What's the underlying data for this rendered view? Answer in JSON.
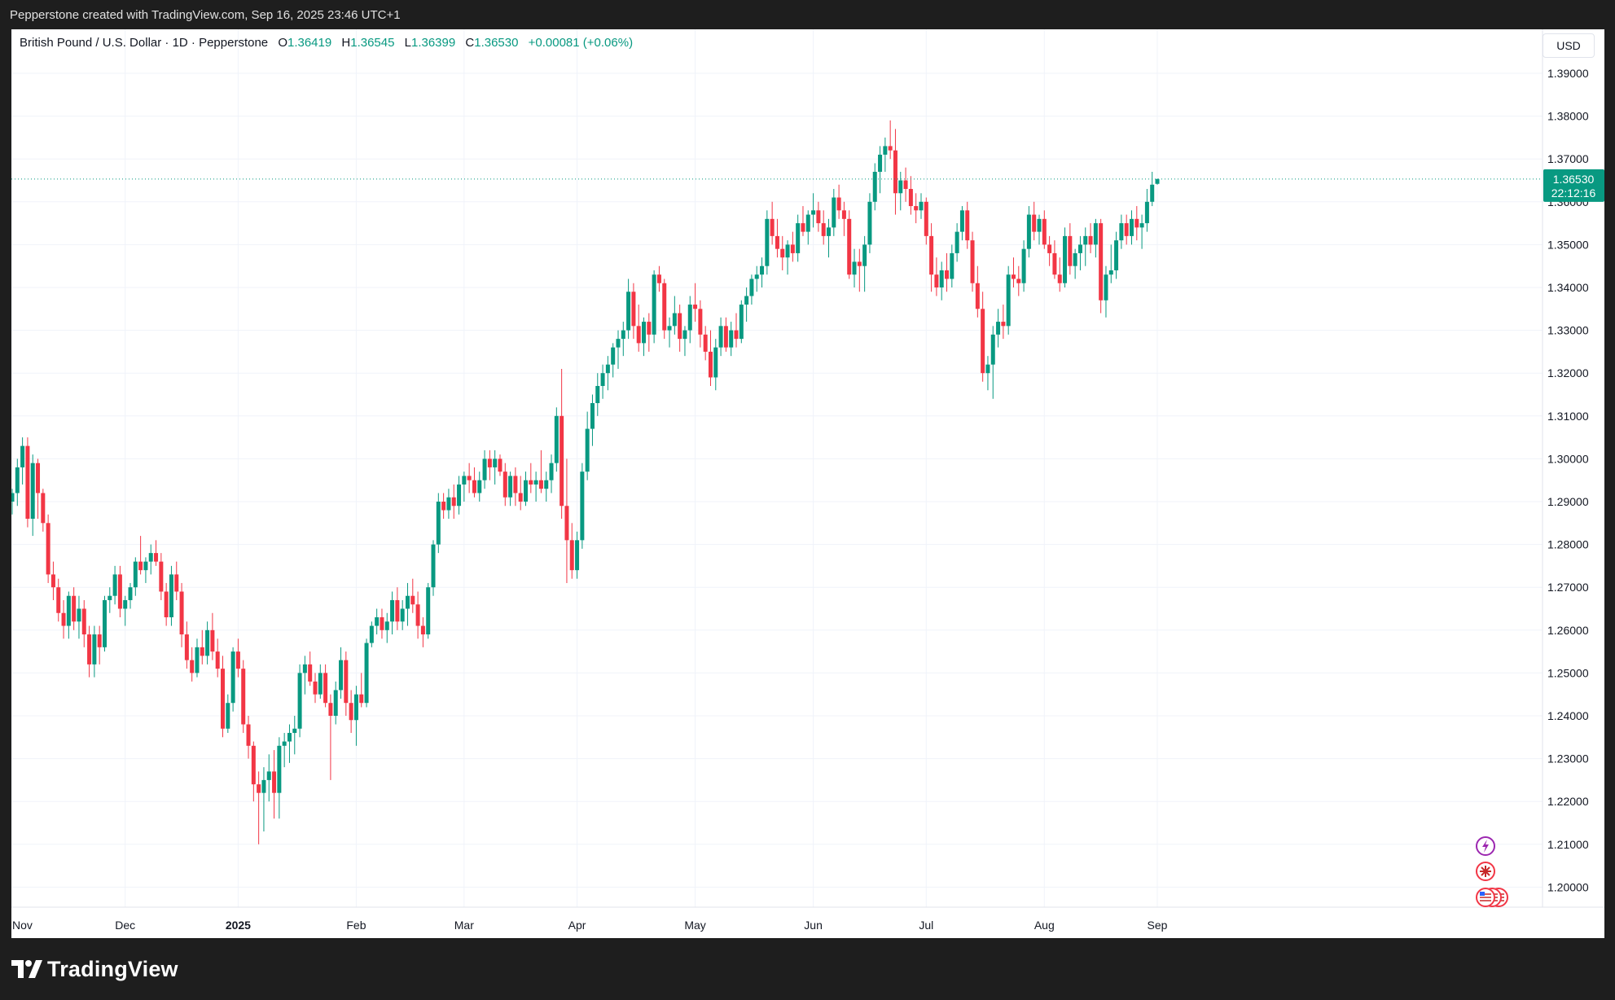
{
  "header": {
    "attribution": "Pepperstone created with TradingView.com, Sep 16, 2025 23:46 UTC+1"
  },
  "legend": {
    "symbol": "British Pound / U.S. Dollar · 1D · Pepperstone",
    "open_label": "O",
    "open": "1.36419",
    "high_label": "H",
    "high": "1.36545",
    "low_label": "L",
    "low": "1.36399",
    "close_label": "C",
    "close": "1.36530",
    "change": "+0.00081 (+0.06%)"
  },
  "currency_button": "USD",
  "price_tag": {
    "price": "1.36530",
    "countdown": "22:12:16",
    "color": "#089981"
  },
  "footer": {
    "brand": "TradingView"
  },
  "colors": {
    "up": "#089981",
    "down": "#f23645",
    "grid": "#f0f3fa"
  },
  "chart_data": {
    "type": "candlestick",
    "y_axis_ticks": [
      "1.20000",
      "1.21000",
      "1.22000",
      "1.23000",
      "1.24000",
      "1.25000",
      "1.26000",
      "1.27000",
      "1.28000",
      "1.29000",
      "1.30000",
      "1.31000",
      "1.32000",
      "1.33000",
      "1.34000",
      "1.35000",
      "1.36000",
      "1.37000",
      "1.38000",
      "1.39000"
    ],
    "ylim": [
      1.1895,
      1.3935
    ],
    "x_axis_labels": [
      {
        "label": "Nov",
        "bar": 0
      },
      {
        "label": "Dec",
        "bar": 22
      },
      {
        "label": "2025",
        "bar": 44,
        "bold": true
      },
      {
        "label": "Feb",
        "bar": 67
      },
      {
        "label": "Mar",
        "bar": 88
      },
      {
        "label": "Apr",
        "bar": 110
      },
      {
        "label": "May",
        "bar": 133
      },
      {
        "label": "Jun",
        "bar": 156
      },
      {
        "label": "Jul",
        "bar": 178
      },
      {
        "label": "Aug",
        "bar": 201
      },
      {
        "label": "Sep",
        "bar": 223
      }
    ],
    "candles_ohlc": [
      [
        1.29,
        1.293,
        1.287,
        1.292
      ],
      [
        1.292,
        1.3,
        1.289,
        1.298
      ],
      [
        1.298,
        1.305,
        1.294,
        1.303
      ],
      [
        1.303,
        1.305,
        1.284,
        1.286
      ],
      [
        1.286,
        1.301,
        1.282,
        1.299
      ],
      [
        1.299,
        1.3,
        1.286,
        1.292
      ],
      [
        1.292,
        1.293,
        1.283,
        1.285
      ],
      [
        1.285,
        1.287,
        1.271,
        1.273
      ],
      [
        1.273,
        1.276,
        1.267,
        1.27
      ],
      [
        1.27,
        1.272,
        1.262,
        1.264
      ],
      [
        1.264,
        1.267,
        1.258,
        1.261
      ],
      [
        1.261,
        1.269,
        1.258,
        1.268
      ],
      [
        1.268,
        1.27,
        1.26,
        1.262
      ],
      [
        1.262,
        1.268,
        1.258,
        1.265
      ],
      [
        1.265,
        1.267,
        1.256,
        1.259
      ],
      [
        1.259,
        1.261,
        1.249,
        1.252
      ],
      [
        1.252,
        1.261,
        1.249,
        1.259
      ],
      [
        1.259,
        1.261,
        1.252,
        1.256
      ],
      [
        1.256,
        1.268,
        1.255,
        1.267
      ],
      [
        1.267,
        1.27,
        1.264,
        1.268
      ],
      [
        1.268,
        1.275,
        1.266,
        1.273
      ],
      [
        1.273,
        1.275,
        1.263,
        1.265
      ],
      [
        1.265,
        1.268,
        1.261,
        1.267
      ],
      [
        1.267,
        1.271,
        1.265,
        1.27
      ],
      [
        1.27,
        1.277,
        1.268,
        1.276
      ],
      [
        1.276,
        1.282,
        1.273,
        1.274
      ],
      [
        1.274,
        1.277,
        1.271,
        1.276
      ],
      [
        1.276,
        1.28,
        1.273,
        1.278
      ],
      [
        1.278,
        1.281,
        1.275,
        1.276
      ],
      [
        1.276,
        1.278,
        1.267,
        1.269
      ],
      [
        1.269,
        1.271,
        1.261,
        1.263
      ],
      [
        1.263,
        1.275,
        1.261,
        1.273
      ],
      [
        1.273,
        1.276,
        1.267,
        1.269
      ],
      [
        1.269,
        1.271,
        1.256,
        1.259
      ],
      [
        1.259,
        1.262,
        1.251,
        1.253
      ],
      [
        1.253,
        1.256,
        1.248,
        1.25
      ],
      [
        1.25,
        1.258,
        1.249,
        1.256
      ],
      [
        1.256,
        1.26,
        1.252,
        1.254
      ],
      [
        1.254,
        1.262,
        1.252,
        1.26
      ],
      [
        1.26,
        1.264,
        1.253,
        1.255
      ],
      [
        1.255,
        1.258,
        1.249,
        1.251
      ],
      [
        1.251,
        1.254,
        1.235,
        1.237
      ],
      [
        1.237,
        1.245,
        1.236,
        1.243
      ],
      [
        1.243,
        1.256,
        1.241,
        1.255
      ],
      [
        1.255,
        1.258,
        1.249,
        1.251
      ],
      [
        1.251,
        1.253,
        1.236,
        1.238
      ],
      [
        1.238,
        1.24,
        1.23,
        1.233
      ],
      [
        1.233,
        1.234,
        1.22,
        1.224
      ],
      [
        1.224,
        1.227,
        1.21,
        1.222
      ],
      [
        1.222,
        1.228,
        1.213,
        1.225
      ],
      [
        1.225,
        1.231,
        1.22,
        1.227
      ],
      [
        1.227,
        1.232,
        1.216,
        1.222
      ],
      [
        1.222,
        1.235,
        1.216,
        1.233
      ],
      [
        1.233,
        1.236,
        1.228,
        1.234
      ],
      [
        1.234,
        1.238,
        1.229,
        1.236
      ],
      [
        1.236,
        1.24,
        1.231,
        1.237
      ],
      [
        1.237,
        1.252,
        1.235,
        1.25
      ],
      [
        1.25,
        1.254,
        1.245,
        1.252
      ],
      [
        1.252,
        1.255,
        1.247,
        1.248
      ],
      [
        1.248,
        1.25,
        1.243,
        1.245
      ],
      [
        1.245,
        1.252,
        1.244,
        1.25
      ],
      [
        1.25,
        1.252,
        1.242,
        1.243
      ],
      [
        1.243,
        1.245,
        1.225,
        1.24
      ],
      [
        1.24,
        1.248,
        1.238,
        1.246
      ],
      [
        1.246,
        1.256,
        1.244,
        1.253
      ],
      [
        1.253,
        1.255,
        1.24,
        1.243
      ],
      [
        1.243,
        1.246,
        1.236,
        1.239
      ],
      [
        1.239,
        1.247,
        1.233,
        1.245
      ],
      [
        1.245,
        1.25,
        1.242,
        1.243
      ],
      [
        1.243,
        1.258,
        1.242,
        1.257
      ],
      [
        1.257,
        1.262,
        1.256,
        1.261
      ],
      [
        1.261,
        1.265,
        1.259,
        1.263
      ],
      [
        1.263,
        1.265,
        1.258,
        1.26
      ],
      [
        1.26,
        1.264,
        1.257,
        1.262
      ],
      [
        1.262,
        1.269,
        1.259,
        1.267
      ],
      [
        1.267,
        1.27,
        1.26,
        1.262
      ],
      [
        1.262,
        1.267,
        1.26,
        1.265
      ],
      [
        1.265,
        1.271,
        1.261,
        1.268
      ],
      [
        1.268,
        1.272,
        1.264,
        1.266
      ],
      [
        1.266,
        1.269,
        1.258,
        1.261
      ],
      [
        1.261,
        1.263,
        1.256,
        1.259
      ],
      [
        1.259,
        1.271,
        1.258,
        1.27
      ],
      [
        1.27,
        1.281,
        1.268,
        1.28
      ],
      [
        1.28,
        1.292,
        1.278,
        1.29
      ],
      [
        1.29,
        1.292,
        1.286,
        1.288
      ],
      [
        1.288,
        1.293,
        1.286,
        1.291
      ],
      [
        1.291,
        1.294,
        1.286,
        1.289
      ],
      [
        1.289,
        1.296,
        1.287,
        1.294
      ],
      [
        1.294,
        1.297,
        1.29,
        1.296
      ],
      [
        1.296,
        1.299,
        1.292,
        1.295
      ],
      [
        1.295,
        1.298,
        1.291,
        1.292
      ],
      [
        1.292,
        1.297,
        1.29,
        1.295
      ],
      [
        1.295,
        1.302,
        1.293,
        1.3
      ],
      [
        1.3,
        1.302,
        1.295,
        1.298
      ],
      [
        1.298,
        1.302,
        1.294,
        1.3
      ],
      [
        1.3,
        1.301,
        1.296,
        1.297
      ],
      [
        1.297,
        1.299,
        1.289,
        1.291
      ],
      [
        1.291,
        1.297,
        1.289,
        1.296
      ],
      [
        1.296,
        1.298,
        1.289,
        1.292
      ],
      [
        1.292,
        1.296,
        1.288,
        1.29
      ],
      [
        1.29,
        1.297,
        1.289,
        1.295
      ],
      [
        1.295,
        1.299,
        1.292,
        1.294
      ],
      [
        1.294,
        1.297,
        1.29,
        1.295
      ],
      [
        1.295,
        1.302,
        1.292,
        1.293
      ],
      [
        1.293,
        1.297,
        1.29,
        1.295
      ],
      [
        1.295,
        1.301,
        1.292,
        1.299
      ],
      [
        1.299,
        1.312,
        1.297,
        1.31
      ],
      [
        1.31,
        1.321,
        1.286,
        1.289
      ],
      [
        1.289,
        1.3,
        1.271,
        1.281
      ],
      [
        1.281,
        1.285,
        1.272,
        1.274
      ],
      [
        1.274,
        1.283,
        1.272,
        1.281
      ],
      [
        1.281,
        1.299,
        1.279,
        1.297
      ],
      [
        1.297,
        1.311,
        1.295,
        1.307
      ],
      [
        1.307,
        1.315,
        1.303,
        1.313
      ],
      [
        1.313,
        1.32,
        1.31,
        1.317
      ],
      [
        1.317,
        1.322,
        1.314,
        1.32
      ],
      [
        1.32,
        1.324,
        1.316,
        1.322
      ],
      [
        1.322,
        1.327,
        1.319,
        1.326
      ],
      [
        1.326,
        1.33,
        1.321,
        1.328
      ],
      [
        1.328,
        1.332,
        1.324,
        1.33
      ],
      [
        1.33,
        1.342,
        1.328,
        1.339
      ],
      [
        1.339,
        1.341,
        1.328,
        1.331
      ],
      [
        1.331,
        1.336,
        1.325,
        1.327
      ],
      [
        1.327,
        1.333,
        1.324,
        1.332
      ],
      [
        1.332,
        1.334,
        1.325,
        1.329
      ],
      [
        1.329,
        1.344,
        1.327,
        1.343
      ],
      [
        1.343,
        1.345,
        1.339,
        1.341
      ],
      [
        1.341,
        1.342,
        1.328,
        1.33
      ],
      [
        1.33,
        1.333,
        1.326,
        1.331
      ],
      [
        1.331,
        1.338,
        1.329,
        1.334
      ],
      [
        1.334,
        1.336,
        1.325,
        1.328
      ],
      [
        1.328,
        1.331,
        1.324,
        1.33
      ],
      [
        1.33,
        1.338,
        1.327,
        1.336
      ],
      [
        1.336,
        1.341,
        1.332,
        1.335
      ],
      [
        1.335,
        1.337,
        1.326,
        1.329
      ],
      [
        1.329,
        1.331,
        1.323,
        1.325
      ],
      [
        1.325,
        1.33,
        1.317,
        1.319
      ],
      [
        1.319,
        1.328,
        1.316,
        1.326
      ],
      [
        1.326,
        1.333,
        1.324,
        1.331
      ],
      [
        1.331,
        1.333,
        1.325,
        1.326
      ],
      [
        1.326,
        1.332,
        1.324,
        1.33
      ],
      [
        1.33,
        1.334,
        1.326,
        1.328
      ],
      [
        1.328,
        1.337,
        1.327,
        1.336
      ],
      [
        1.336,
        1.34,
        1.332,
        1.338
      ],
      [
        1.338,
        1.343,
        1.336,
        1.342
      ],
      [
        1.342,
        1.345,
        1.339,
        1.343
      ],
      [
        1.343,
        1.347,
        1.34,
        1.345
      ],
      [
        1.345,
        1.358,
        1.343,
        1.356
      ],
      [
        1.356,
        1.36,
        1.35,
        1.352
      ],
      [
        1.352,
        1.356,
        1.347,
        1.349
      ],
      [
        1.349,
        1.352,
        1.344,
        1.347
      ],
      [
        1.347,
        1.351,
        1.343,
        1.35
      ],
      [
        1.35,
        1.353,
        1.346,
        1.348
      ],
      [
        1.348,
        1.357,
        1.346,
        1.355
      ],
      [
        1.355,
        1.359,
        1.352,
        1.353
      ],
      [
        1.353,
        1.358,
        1.35,
        1.357
      ],
      [
        1.357,
        1.362,
        1.354,
        1.358
      ],
      [
        1.358,
        1.36,
        1.353,
        1.355
      ],
      [
        1.355,
        1.358,
        1.35,
        1.352
      ],
      [
        1.352,
        1.356,
        1.347,
        1.354
      ],
      [
        1.354,
        1.363,
        1.352,
        1.361
      ],
      [
        1.361,
        1.364,
        1.356,
        1.358
      ],
      [
        1.358,
        1.36,
        1.352,
        1.356
      ],
      [
        1.356,
        1.358,
        1.342,
        1.343
      ],
      [
        1.343,
        1.349,
        1.34,
        1.346
      ],
      [
        1.346,
        1.349,
        1.339,
        1.345
      ],
      [
        1.345,
        1.352,
        1.339,
        1.35
      ],
      [
        1.35,
        1.362,
        1.348,
        1.36
      ],
      [
        1.36,
        1.369,
        1.358,
        1.367
      ],
      [
        1.367,
        1.373,
        1.362,
        1.371
      ],
      [
        1.371,
        1.375,
        1.367,
        1.373
      ],
      [
        1.373,
        1.379,
        1.37,
        1.372
      ],
      [
        1.372,
        1.377,
        1.357,
        1.362
      ],
      [
        1.362,
        1.367,
        1.358,
        1.365
      ],
      [
        1.365,
        1.368,
        1.36,
        1.363
      ],
      [
        1.363,
        1.366,
        1.357,
        1.359
      ],
      [
        1.359,
        1.362,
        1.355,
        1.358
      ],
      [
        1.358,
        1.362,
        1.356,
        1.36
      ],
      [
        1.36,
        1.361,
        1.35,
        1.352
      ],
      [
        1.352,
        1.355,
        1.339,
        1.343
      ],
      [
        1.343,
        1.347,
        1.338,
        1.34
      ],
      [
        1.34,
        1.346,
        1.337,
        1.344
      ],
      [
        1.344,
        1.348,
        1.339,
        1.342
      ],
      [
        1.342,
        1.35,
        1.34,
        1.348
      ],
      [
        1.348,
        1.355,
        1.346,
        1.353
      ],
      [
        1.353,
        1.359,
        1.351,
        1.358
      ],
      [
        1.358,
        1.36,
        1.349,
        1.351
      ],
      [
        1.351,
        1.353,
        1.339,
        1.341
      ],
      [
        1.341,
        1.345,
        1.333,
        1.335
      ],
      [
        1.335,
        1.339,
        1.318,
        1.32
      ],
      [
        1.32,
        1.324,
        1.316,
        1.322
      ],
      [
        1.322,
        1.331,
        1.314,
        1.329
      ],
      [
        1.329,
        1.335,
        1.326,
        1.332
      ],
      [
        1.332,
        1.336,
        1.328,
        1.331
      ],
      [
        1.331,
        1.345,
        1.329,
        1.343
      ],
      [
        1.343,
        1.347,
        1.34,
        1.342
      ],
      [
        1.342,
        1.345,
        1.338,
        1.341
      ],
      [
        1.341,
        1.351,
        1.339,
        1.349
      ],
      [
        1.349,
        1.359,
        1.347,
        1.357
      ],
      [
        1.357,
        1.36,
        1.351,
        1.353
      ],
      [
        1.353,
        1.357,
        1.35,
        1.356
      ],
      [
        1.356,
        1.358,
        1.349,
        1.35
      ],
      [
        1.35,
        1.352,
        1.345,
        1.348
      ],
      [
        1.348,
        1.351,
        1.342,
        1.343
      ],
      [
        1.343,
        1.347,
        1.339,
        1.341
      ],
      [
        1.341,
        1.354,
        1.34,
        1.352
      ],
      [
        1.352,
        1.355,
        1.343,
        1.345
      ],
      [
        1.345,
        1.349,
        1.342,
        1.348
      ],
      [
        1.348,
        1.352,
        1.344,
        1.35
      ],
      [
        1.35,
        1.354,
        1.345,
        1.352
      ],
      [
        1.352,
        1.355,
        1.348,
        1.35
      ],
      [
        1.35,
        1.356,
        1.347,
        1.355
      ],
      [
        1.355,
        1.356,
        1.334,
        1.337
      ],
      [
        1.337,
        1.345,
        1.333,
        1.343
      ],
      [
        1.343,
        1.35,
        1.341,
        1.344
      ],
      [
        1.344,
        1.353,
        1.342,
        1.351
      ],
      [
        1.351,
        1.357,
        1.349,
        1.355
      ],
      [
        1.355,
        1.357,
        1.35,
        1.352
      ],
      [
        1.352,
        1.358,
        1.35,
        1.356
      ],
      [
        1.356,
        1.359,
        1.351,
        1.354
      ],
      [
        1.354,
        1.357,
        1.349,
        1.355
      ],
      [
        1.355,
        1.363,
        1.353,
        1.36
      ],
      [
        1.36,
        1.367,
        1.359,
        1.364
      ],
      [
        1.36419,
        1.36545,
        1.36399,
        1.3653
      ]
    ]
  }
}
